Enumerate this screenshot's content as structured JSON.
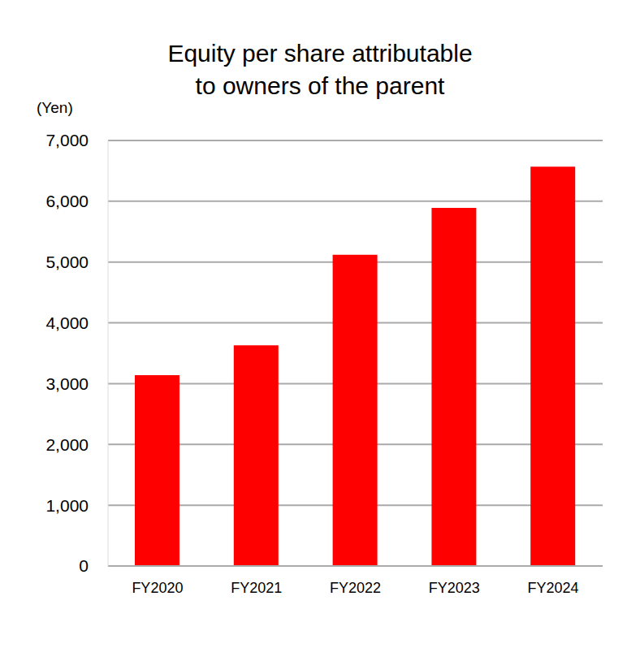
{
  "chart_data": {
    "type": "bar",
    "title": "Equity per share attributable\nto owners of the parent",
    "y_label": "(Yen)",
    "categories": [
      "FY2020",
      "FY2021",
      "FY2022",
      "FY2023",
      "FY2024"
    ],
    "values": [
      3140,
      3630,
      5120,
      5890,
      6570
    ],
    "color": "#ff0000",
    "ylim": [
      0,
      7000
    ],
    "yticks": [
      0,
      {
        "value": 1000,
        "label": "1,000"
      },
      {
        "value": 2000,
        "label": "2,000"
      },
      {
        "value": 3000,
        "label": "3,000"
      },
      {
        "value": 4000,
        "label": "4,000"
      },
      {
        "value": 5000,
        "label": "5,000"
      },
      {
        "value": 6000,
        "label": "6,000"
      },
      {
        "value": 7000,
        "label": "7,000"
      }
    ],
    "grid": true
  }
}
